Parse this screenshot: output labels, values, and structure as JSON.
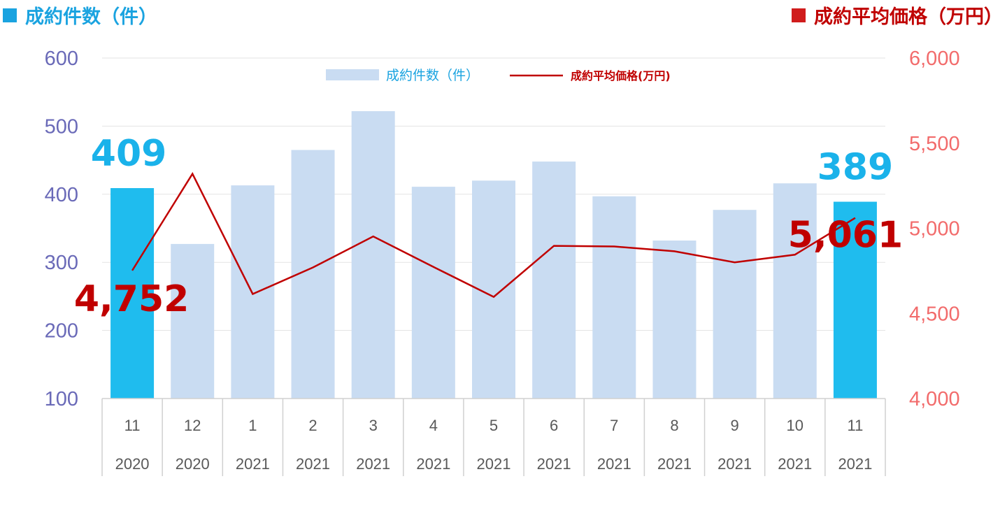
{
  "headers": {
    "left": "成約件数（件）",
    "right": "成約平均価格（万円）"
  },
  "chart_data": {
    "type": "bar",
    "categories": [
      {
        "month": "11",
        "year": "2020"
      },
      {
        "month": "12",
        "year": "2020"
      },
      {
        "month": "1",
        "year": "2021"
      },
      {
        "month": "2",
        "year": "2021"
      },
      {
        "month": "3",
        "year": "2021"
      },
      {
        "month": "4",
        "year": "2021"
      },
      {
        "month": "5",
        "year": "2021"
      },
      {
        "month": "6",
        "year": "2021"
      },
      {
        "month": "7",
        "year": "2021"
      },
      {
        "month": "8",
        "year": "2021"
      },
      {
        "month": "9",
        "year": "2021"
      },
      {
        "month": "10",
        "year": "2021"
      },
      {
        "month": "11",
        "year": "2021"
      }
    ],
    "series": [
      {
        "name": "成約件数（件）",
        "type": "bar",
        "axis": "left",
        "values": [
          409,
          327,
          413,
          465,
          522,
          411,
          420,
          448,
          397,
          332,
          377,
          416,
          389
        ],
        "highlight": [
          0,
          12
        ],
        "color": "#c9dcf2",
        "highlight_color": "#1fbcee"
      },
      {
        "name": "成約平均価格(万円)",
        "type": "line",
        "axis": "right",
        "values": [
          4752,
          5320,
          4614,
          4770,
          4952,
          4773,
          4597,
          4897,
          4893,
          4865,
          4800,
          4845,
          5061
        ],
        "color": "#c00000"
      }
    ],
    "y_left": {
      "ylim": [
        100,
        600
      ],
      "ticks": [
        "600",
        "500",
        "400",
        "300",
        "200",
        "100"
      ],
      "tick_values": [
        600,
        500,
        400,
        300,
        200,
        100
      ]
    },
    "y_right": {
      "ylim": [
        4000,
        6000
      ],
      "ticks": [
        "6,000",
        "5,500",
        "5,000",
        "4,500",
        "4,000"
      ],
      "tick_values": [
        6000,
        5500,
        5000,
        4500,
        4000
      ]
    },
    "data_labels": [
      {
        "series": 0,
        "index": 0,
        "text": "409"
      },
      {
        "series": 0,
        "index": 12,
        "text": "389"
      },
      {
        "series": 1,
        "index": 0,
        "text": "4,752"
      },
      {
        "series": 1,
        "index": 12,
        "text": "5,061"
      }
    ],
    "legend": "top-center",
    "grid": true
  }
}
